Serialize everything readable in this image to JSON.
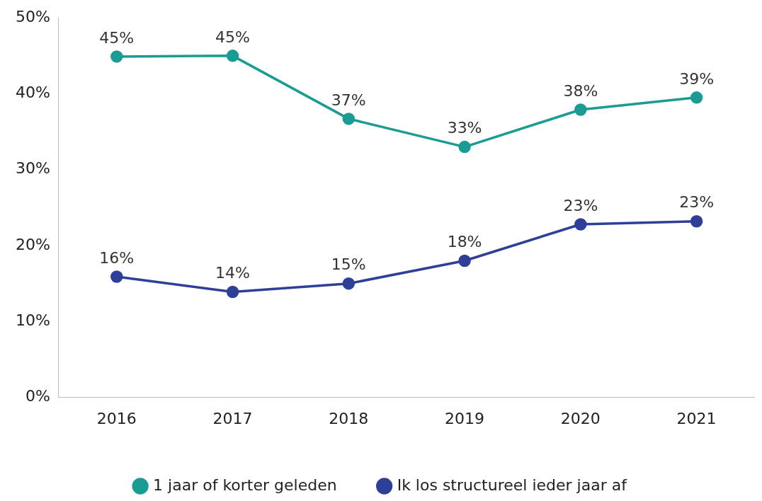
{
  "chart_data": {
    "type": "line",
    "categories": [
      "2016",
      "2017",
      "2018",
      "2019",
      "2020",
      "2021"
    ],
    "series": [
      {
        "name": "1 jaar of korter geleden",
        "color": "#1a9c94",
        "values": [
          44.9,
          45.0,
          36.7,
          33.0,
          37.9,
          39.5
        ],
        "value_labels": [
          "45%",
          "45%",
          "37%",
          "33%",
          "38%",
          "39%"
        ]
      },
      {
        "name": "Ik los structureel ieder jaar af",
        "color": "#2e3f98",
        "values": [
          15.9,
          13.9,
          15.0,
          18.0,
          22.8,
          23.2
        ],
        "value_labels": [
          "16%",
          "14%",
          "15%",
          "18%",
          "23%",
          "23%"
        ]
      }
    ],
    "ylim": [
      0,
      50
    ],
    "yticks": [
      {
        "value": 0,
        "label": "0%"
      },
      {
        "value": 10,
        "label": "10%"
      },
      {
        "value": 20,
        "label": "20%"
      },
      {
        "value": 30,
        "label": "30%"
      },
      {
        "value": 40,
        "label": "40%"
      },
      {
        "value": 50,
        "label": "50%"
      }
    ],
    "grid": false,
    "legend": "bottom",
    "marker": "circle",
    "line_style": "solid"
  }
}
